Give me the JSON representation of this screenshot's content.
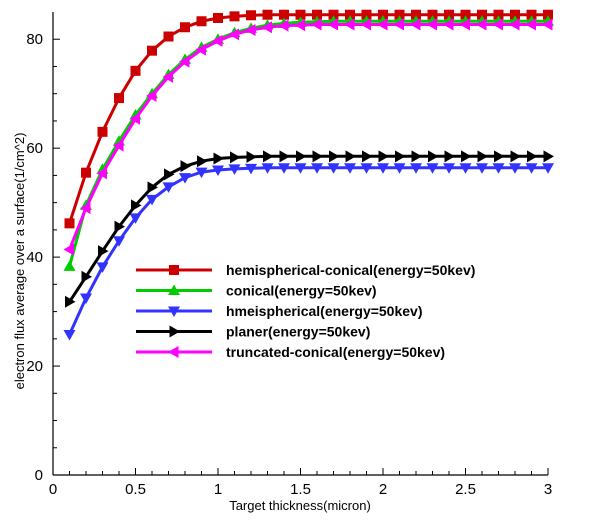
{
  "chart_data": {
    "type": "line",
    "title": "",
    "xlabel": "Target thickness(micron)",
    "ylabel": "electron flux average over a surface(1/cm^2)",
    "xlim": [
      0,
      3
    ],
    "ylim": [
      0,
      85
    ],
    "xticks": [
      0,
      0.5,
      1,
      1.5,
      2,
      2.5,
      3
    ],
    "xtick_labels": [
      "0",
      "0.5",
      "1",
      "1.5",
      "2",
      "2.5",
      "3"
    ],
    "yticks": [
      0,
      20,
      40,
      60,
      80
    ],
    "ytick_labels": [
      "0",
      "20",
      "40",
      "60",
      "80"
    ],
    "grid": false,
    "legend_position": "center-right",
    "x": [
      0.1,
      0.2,
      0.3,
      0.4,
      0.5,
      0.6,
      0.7,
      0.8,
      0.9,
      1.0,
      1.1,
      1.2,
      1.3,
      1.4,
      1.5,
      1.6,
      1.7,
      1.8,
      1.9,
      2.0,
      2.1,
      2.2,
      2.3,
      2.4,
      2.5,
      2.6,
      2.7,
      2.8,
      2.9,
      3.0
    ],
    "series": [
      {
        "name": "hemispherical-conical(energy=50kev)",
        "color": "#cc0000",
        "marker": "square",
        "values": [
          46.2,
          55.5,
          63.0,
          69.2,
          74.2,
          77.9,
          80.5,
          82.2,
          83.3,
          83.9,
          84.2,
          84.4,
          84.5,
          84.5,
          84.5,
          84.5,
          84.5,
          84.5,
          84.5,
          84.5,
          84.5,
          84.5,
          84.5,
          84.5,
          84.5,
          84.5,
          84.5,
          84.5,
          84.5,
          84.5
        ]
      },
      {
        "name": "conical(energy=50kev)",
        "color": "#00cc00",
        "marker": "triangle-up",
        "values": [
          38.3,
          49.5,
          56.1,
          61.3,
          66.1,
          70.0,
          73.5,
          76.3,
          78.5,
          80.0,
          81.2,
          82.0,
          82.6,
          82.9,
          83.1,
          83.2,
          83.3,
          83.3,
          83.3,
          83.3,
          83.3,
          83.3,
          83.3,
          83.3,
          83.3,
          83.3,
          83.3,
          83.3,
          83.3,
          83.3
        ]
      },
      {
        "name": "hmeispherical(energy=50kev)",
        "color": "#3333ff",
        "marker": "triangle-down",
        "values": [
          25.8,
          32.5,
          38.2,
          43.0,
          47.2,
          50.6,
          52.9,
          54.6,
          55.6,
          56.0,
          56.2,
          56.3,
          56.4,
          56.4,
          56.4,
          56.4,
          56.4,
          56.4,
          56.4,
          56.4,
          56.4,
          56.4,
          56.4,
          56.4,
          56.4,
          56.4,
          56.4,
          56.4,
          56.4,
          56.4
        ]
      },
      {
        "name": "planer(energy=50kev)",
        "color": "#000000",
        "marker": "triangle-right",
        "values": [
          31.8,
          36.4,
          41.1,
          45.6,
          49.5,
          52.8,
          55.2,
          56.7,
          57.6,
          58.1,
          58.3,
          58.4,
          58.5,
          58.5,
          58.5,
          58.5,
          58.5,
          58.5,
          58.5,
          58.5,
          58.5,
          58.5,
          58.5,
          58.5,
          58.5,
          58.5,
          58.5,
          58.5,
          58.5,
          58.5
        ]
      },
      {
        "name": "truncated-conical(energy=50kev)",
        "color": "#ff00ff",
        "marker": "triangle-left",
        "values": [
          41.4,
          49.0,
          55.4,
          60.5,
          65.4,
          69.6,
          73.1,
          75.9,
          78.1,
          79.7,
          80.9,
          81.7,
          82.2,
          82.5,
          82.6,
          82.7,
          82.7,
          82.7,
          82.7,
          82.7,
          82.7,
          82.7,
          82.7,
          82.7,
          82.7,
          82.7,
          82.7,
          82.7,
          82.7,
          82.7
        ]
      }
    ]
  }
}
